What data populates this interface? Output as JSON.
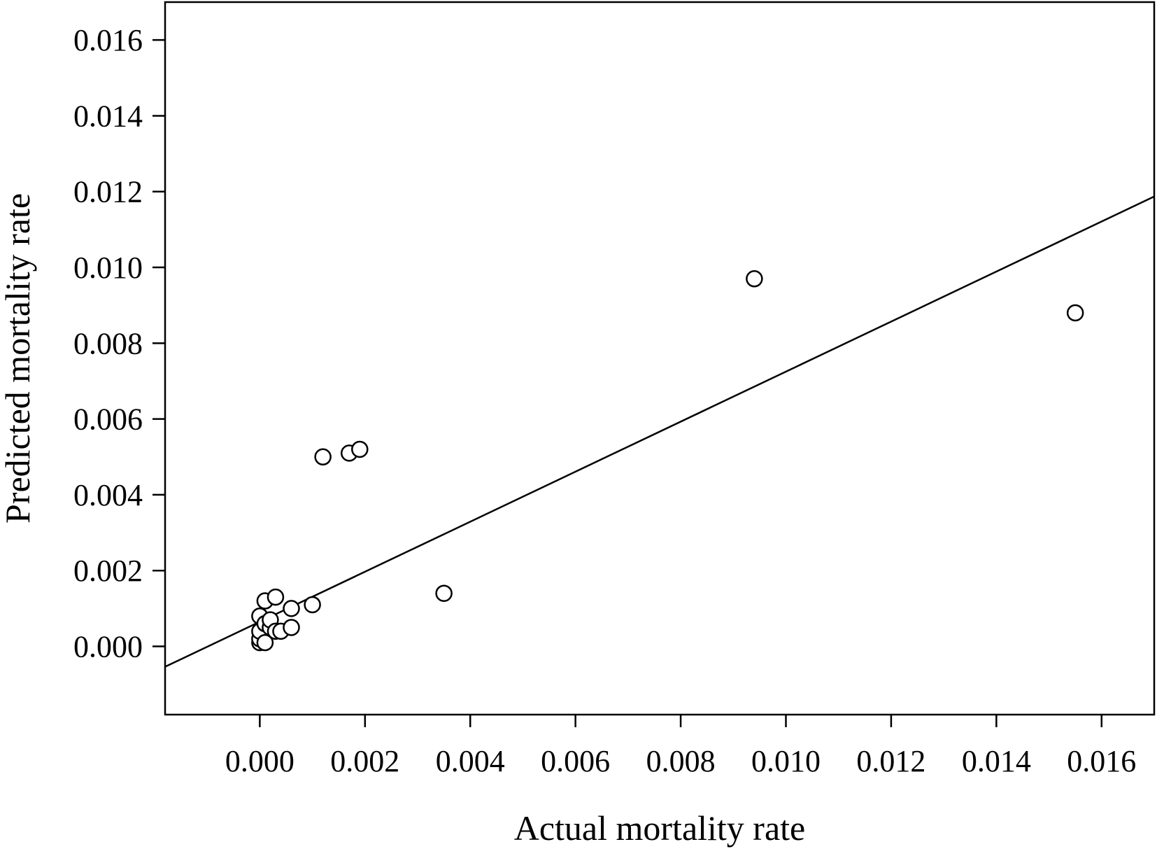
{
  "chart_data": {
    "type": "scatter",
    "title": "",
    "xlabel": "Actual mortality rate",
    "ylabel": "Predicted mortality rate",
    "xlim": [
      -0.0018,
      0.017
    ],
    "ylim": [
      -0.0018,
      0.017
    ],
    "xticks": [
      "0.000",
      "0.002",
      "0.004",
      "0.006",
      "0.008",
      "0.010",
      "0.012",
      "0.014",
      "0.016"
    ],
    "yticks": [
      "0.000",
      "0.002",
      "0.004",
      "0.006",
      "0.008",
      "0.010",
      "0.012",
      "0.014",
      "0.016"
    ],
    "grid": false,
    "legend": "none",
    "marker": "open-circle",
    "points": [
      {
        "x": 0.0,
        "y": 0.0001
      },
      {
        "x": 0.0,
        "y": 0.0002
      },
      {
        "x": 0.0,
        "y": 0.0004
      },
      {
        "x": 0.0,
        "y": 0.0008
      },
      {
        "x": 0.0001,
        "y": 0.0001
      },
      {
        "x": 0.0001,
        "y": 0.0006
      },
      {
        "x": 0.0001,
        "y": 0.0012
      },
      {
        "x": 0.0002,
        "y": 0.0005
      },
      {
        "x": 0.0002,
        "y": 0.0007
      },
      {
        "x": 0.0003,
        "y": 0.0004
      },
      {
        "x": 0.0003,
        "y": 0.0013
      },
      {
        "x": 0.0004,
        "y": 0.0004
      },
      {
        "x": 0.0006,
        "y": 0.0005
      },
      {
        "x": 0.0006,
        "y": 0.001
      },
      {
        "x": 0.001,
        "y": 0.0011
      },
      {
        "x": 0.0012,
        "y": 0.005
      },
      {
        "x": 0.0017,
        "y": 0.0051
      },
      {
        "x": 0.0019,
        "y": 0.0052
      },
      {
        "x": 0.0035,
        "y": 0.0014
      },
      {
        "x": 0.0094,
        "y": 0.0097
      },
      {
        "x": 0.0155,
        "y": 0.0088
      }
    ],
    "fit_line": {
      "intercept": 0.00065,
      "slope": 0.66
    }
  }
}
